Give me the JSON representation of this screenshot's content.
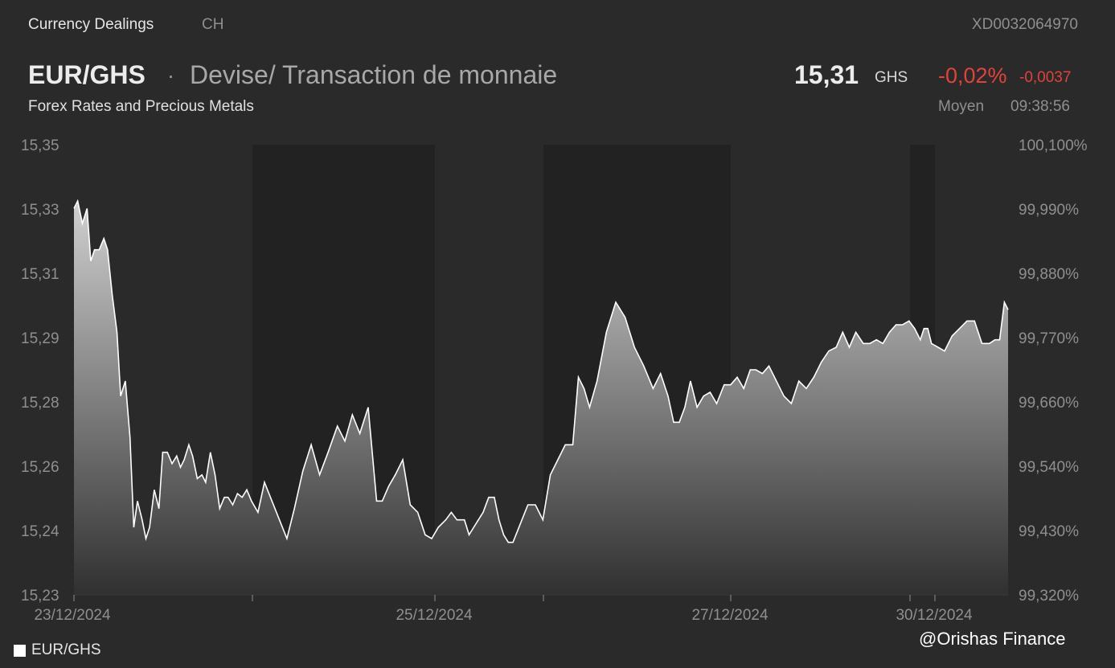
{
  "header": {
    "section": "Currency Dealings",
    "exchange": "CH",
    "isin": "XD0032064970",
    "pair": "EUR/GHS",
    "separator": "·",
    "description": "Devise/ Transaction de monnaie",
    "category": "Forex Rates and Precious Metals",
    "price": "15,31",
    "currency": "GHS",
    "change_pct": "-0,02%",
    "change_abs": "-0,0037",
    "price_type": "Moyen",
    "time": "09:38:56"
  },
  "colors": {
    "background": "#2a2a2a",
    "closed_band": "#222222",
    "line": "#ffffff",
    "negative": "#e0433b",
    "muted": "#8f8f8f"
  },
  "legend": {
    "label": "EUR/GHS"
  },
  "credit": "@Orishas Finance",
  "chart_data": {
    "type": "area",
    "ylim": [
      15.23,
      15.35
    ],
    "y_ticks": [
      15.35,
      15.33,
      15.31,
      15.29,
      15.28,
      15.26,
      15.24,
      15.23
    ],
    "y_tick_labels": [
      "15,35",
      "15,33",
      "15,31",
      "15,29",
      "15,28",
      "15,26",
      "15,24",
      "15,23"
    ],
    "y2_tick_labels": [
      "100,100%",
      "99,990%",
      "99,880%",
      "99,770%",
      "99,660%",
      "99,540%",
      "99,430%",
      "99,320%"
    ],
    "x_labels": [
      "23/12/2024",
      "25/12/2024",
      "27/12/2024",
      "30/12/2024"
    ],
    "closed_periods": [
      [
        "24/12/2024 pm",
        "25/12/2024"
      ],
      [
        "26/12/2024 pm",
        "27/12/2024"
      ],
      [
        "30/12/2024",
        "30/12/2024 am"
      ]
    ],
    "series": [
      {
        "name": "EUR/GHS",
        "x_fraction": [
          0,
          0.004,
          0.009,
          0.014,
          0.018,
          0.022,
          0.027,
          0.032,
          0.036,
          0.041,
          0.046,
          0.05,
          0.055,
          0.06,
          0.064,
          0.068,
          0.073,
          0.077,
          0.081,
          0.086,
          0.091,
          0.095,
          0.1,
          0.105,
          0.11,
          0.114,
          0.118,
          0.123,
          0.127,
          0.132,
          0.137,
          0.141,
          0.146,
          0.151,
          0.156,
          0.161,
          0.165,
          0.17,
          0.175,
          0.18,
          0.185,
          0.19,
          0.197,
          0.204,
          0.212,
          0.22,
          0.228,
          0.236,
          0.245,
          0.254,
          0.263,
          0.272,
          0.282,
          0.29,
          0.298,
          0.306,
          0.315,
          0.324,
          0.33,
          0.337,
          0.344,
          0.352,
          0.36,
          0.368,
          0.376,
          0.383,
          0.39,
          0.398,
          0.404,
          0.41,
          0.418,
          0.423,
          0.428,
          0.433,
          0.438,
          0.444,
          0.45,
          0.455,
          0.46,
          0.465,
          0.47,
          0.478,
          0.486,
          0.494,
          0.502,
          0.51,
          0.518,
          0.526,
          0.534,
          0.54,
          0.546,
          0.552,
          0.56,
          0.57,
          0.58,
          0.59,
          0.6,
          0.61,
          0.62,
          0.628,
          0.636,
          0.642,
          0.648,
          0.654,
          0.66,
          0.667,
          0.674,
          0.681,
          0.688,
          0.696,
          0.703,
          0.71,
          0.717,
          0.724,
          0.73,
          0.737,
          0.744,
          0.752,
          0.76,
          0.768,
          0.776,
          0.784,
          0.792,
          0.8,
          0.808,
          0.816,
          0.823,
          0.83,
          0.837,
          0.845,
          0.852,
          0.859,
          0.866,
          0.873,
          0.88,
          0.887,
          0.894,
          0.9,
          0.906,
          0.91,
          0.914,
          0.918,
          0.925,
          0.932,
          0.94,
          0.948,
          0.956,
          0.964,
          0.972,
          0.98,
          0.986,
          0.991,
          0.996,
          1.0
        ],
        "values": [
          15.333,
          15.335,
          15.329,
          15.333,
          15.319,
          15.322,
          15.322,
          15.325,
          15.322,
          15.31,
          15.3,
          15.283,
          15.287,
          15.272,
          15.248,
          15.255,
          15.25,
          15.245,
          15.248,
          15.258,
          15.253,
          15.268,
          15.268,
          15.265,
          15.267,
          15.264,
          15.266,
          15.27,
          15.267,
          15.261,
          15.262,
          15.26,
          15.268,
          15.262,
          15.253,
          15.256,
          15.256,
          15.254,
          15.257,
          15.256,
          15.258,
          15.255,
          15.252,
          15.26,
          15.255,
          15.25,
          15.245,
          15.253,
          15.263,
          15.27,
          15.262,
          15.268,
          15.275,
          15.271,
          15.278,
          15.273,
          15.28,
          15.255,
          15.255,
          15.259,
          15.262,
          15.266,
          15.254,
          15.252,
          15.246,
          15.245,
          15.248,
          15.25,
          15.252,
          15.25,
          15.25,
          15.246,
          15.248,
          15.25,
          15.252,
          15.256,
          15.256,
          15.25,
          15.246,
          15.244,
          15.244,
          15.249,
          15.254,
          15.254,
          15.25,
          15.262,
          15.266,
          15.27,
          15.27,
          15.288,
          15.285,
          15.28,
          15.287,
          15.3,
          15.308,
          15.304,
          15.296,
          15.291,
          15.285,
          15.289,
          15.283,
          15.276,
          15.276,
          15.28,
          15.287,
          15.28,
          15.283,
          15.284,
          15.281,
          15.286,
          15.286,
          15.288,
          15.285,
          15.29,
          15.29,
          15.289,
          15.291,
          15.287,
          15.283,
          15.281,
          15.287,
          15.285,
          15.288,
          15.292,
          15.295,
          15.296,
          15.3,
          15.296,
          15.3,
          15.297,
          15.297,
          15.298,
          15.297,
          15.3,
          15.302,
          15.302,
          15.303,
          15.301,
          15.298,
          15.301,
          15.301,
          15.297,
          15.296,
          15.295,
          15.299,
          15.301,
          15.303,
          15.303,
          15.297,
          15.297,
          15.298,
          15.298,
          15.308,
          15.306
        ]
      }
    ]
  }
}
